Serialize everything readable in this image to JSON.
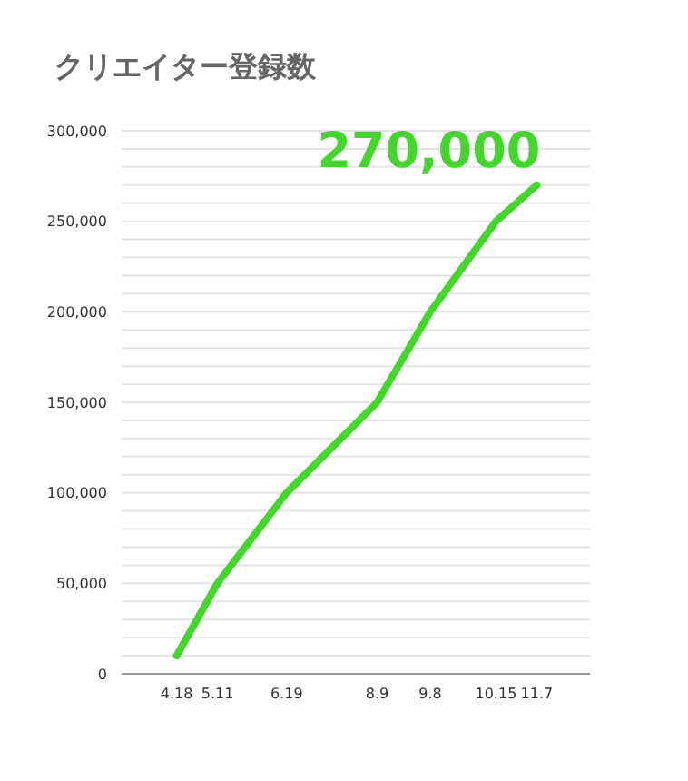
{
  "chart_data": {
    "type": "line",
    "title": "クリエイター登録数",
    "x": [
      "--04-18",
      "--05-11",
      "--06-19",
      "--08-09",
      "--09-08",
      "--10-15",
      "--11-07"
    ],
    "series": [
      {
        "color": "#44d62c",
        "values": [
          10000,
          50000,
          100000,
          150000,
          200000,
          250000,
          270000
        ]
      }
    ],
    "xlim": [
      "--03-18",
      "--12-07"
    ],
    "xticks": [
      {
        "value": "--04-18",
        "label": "4.18"
      },
      {
        "value": "--05-11",
        "label": "5.11"
      },
      {
        "value": "--06-19",
        "label": "6.19"
      },
      {
        "value": "--08-09",
        "label": "8.9"
      },
      {
        "value": "--09-08",
        "label": "9.8"
      },
      {
        "value": "--10-15",
        "label": "10.15"
      },
      {
        "value": "--11-07",
        "label": "11.7"
      }
    ],
    "ylim": [
      0,
      300000
    ],
    "yticks": [
      {
        "value": 0,
        "label": "0"
      },
      {
        "value": 10000,
        "label": null
      },
      {
        "value": 20000,
        "label": null
      },
      {
        "value": 30000,
        "label": null
      },
      {
        "value": 40000,
        "label": null
      },
      {
        "value": 50000,
        "label": "50,000"
      },
      {
        "value": 60000,
        "label": null
      },
      {
        "value": 70000,
        "label": null
      },
      {
        "value": 80000,
        "label": null
      },
      {
        "value": 90000,
        "label": null
      },
      {
        "value": 100000,
        "label": "100,000"
      },
      {
        "value": 110000,
        "label": null
      },
      {
        "value": 120000,
        "label": null
      },
      {
        "value": 130000,
        "label": null
      },
      {
        "value": 140000,
        "label": null
      },
      {
        "value": 150000,
        "label": "150,000"
      },
      {
        "value": 160000,
        "label": null
      },
      {
        "value": 170000,
        "label": null
      },
      {
        "value": 180000,
        "label": null
      },
      {
        "value": 190000,
        "label": null
      },
      {
        "value": 200000,
        "label": "200,000"
      },
      {
        "value": 210000,
        "label": null
      },
      {
        "value": 220000,
        "label": null
      },
      {
        "value": 230000,
        "label": null
      },
      {
        "value": 240000,
        "label": null
      },
      {
        "value": 250000,
        "label": "250,000"
      },
      {
        "value": 260000,
        "label": null
      },
      {
        "value": 270000,
        "label": null
      },
      {
        "value": 280000,
        "label": null
      },
      {
        "value": 290000,
        "label": null
      },
      {
        "value": 300000,
        "label": "300,000"
      }
    ],
    "grid": "y",
    "marker": "none",
    "annotations": [
      {
        "text": "270,000",
        "x": "--11-07",
        "y": 270000
      }
    ]
  }
}
